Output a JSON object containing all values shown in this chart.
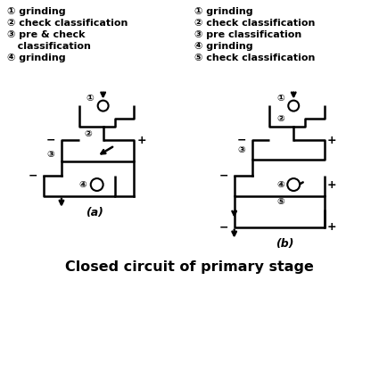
{
  "title": "Closed circuit of primary stage",
  "label_a": "(a)",
  "label_b": "(b)",
  "bg_color": "#ffffff",
  "line_color": "#000000",
  "left_legend_lines": [
    "① grinding",
    "② check classification",
    "③ pre & check",
    "   classification",
    "④ grinding"
  ],
  "right_legend_lines": [
    "① grinding",
    "② check classification",
    "③ pre classification",
    "④ grinding",
    "⑤ check classification"
  ],
  "fontsize_legend": 8.0,
  "fontsize_title": 11.5,
  "fontsize_label": 9.0,
  "fontsize_circled": 7.5
}
